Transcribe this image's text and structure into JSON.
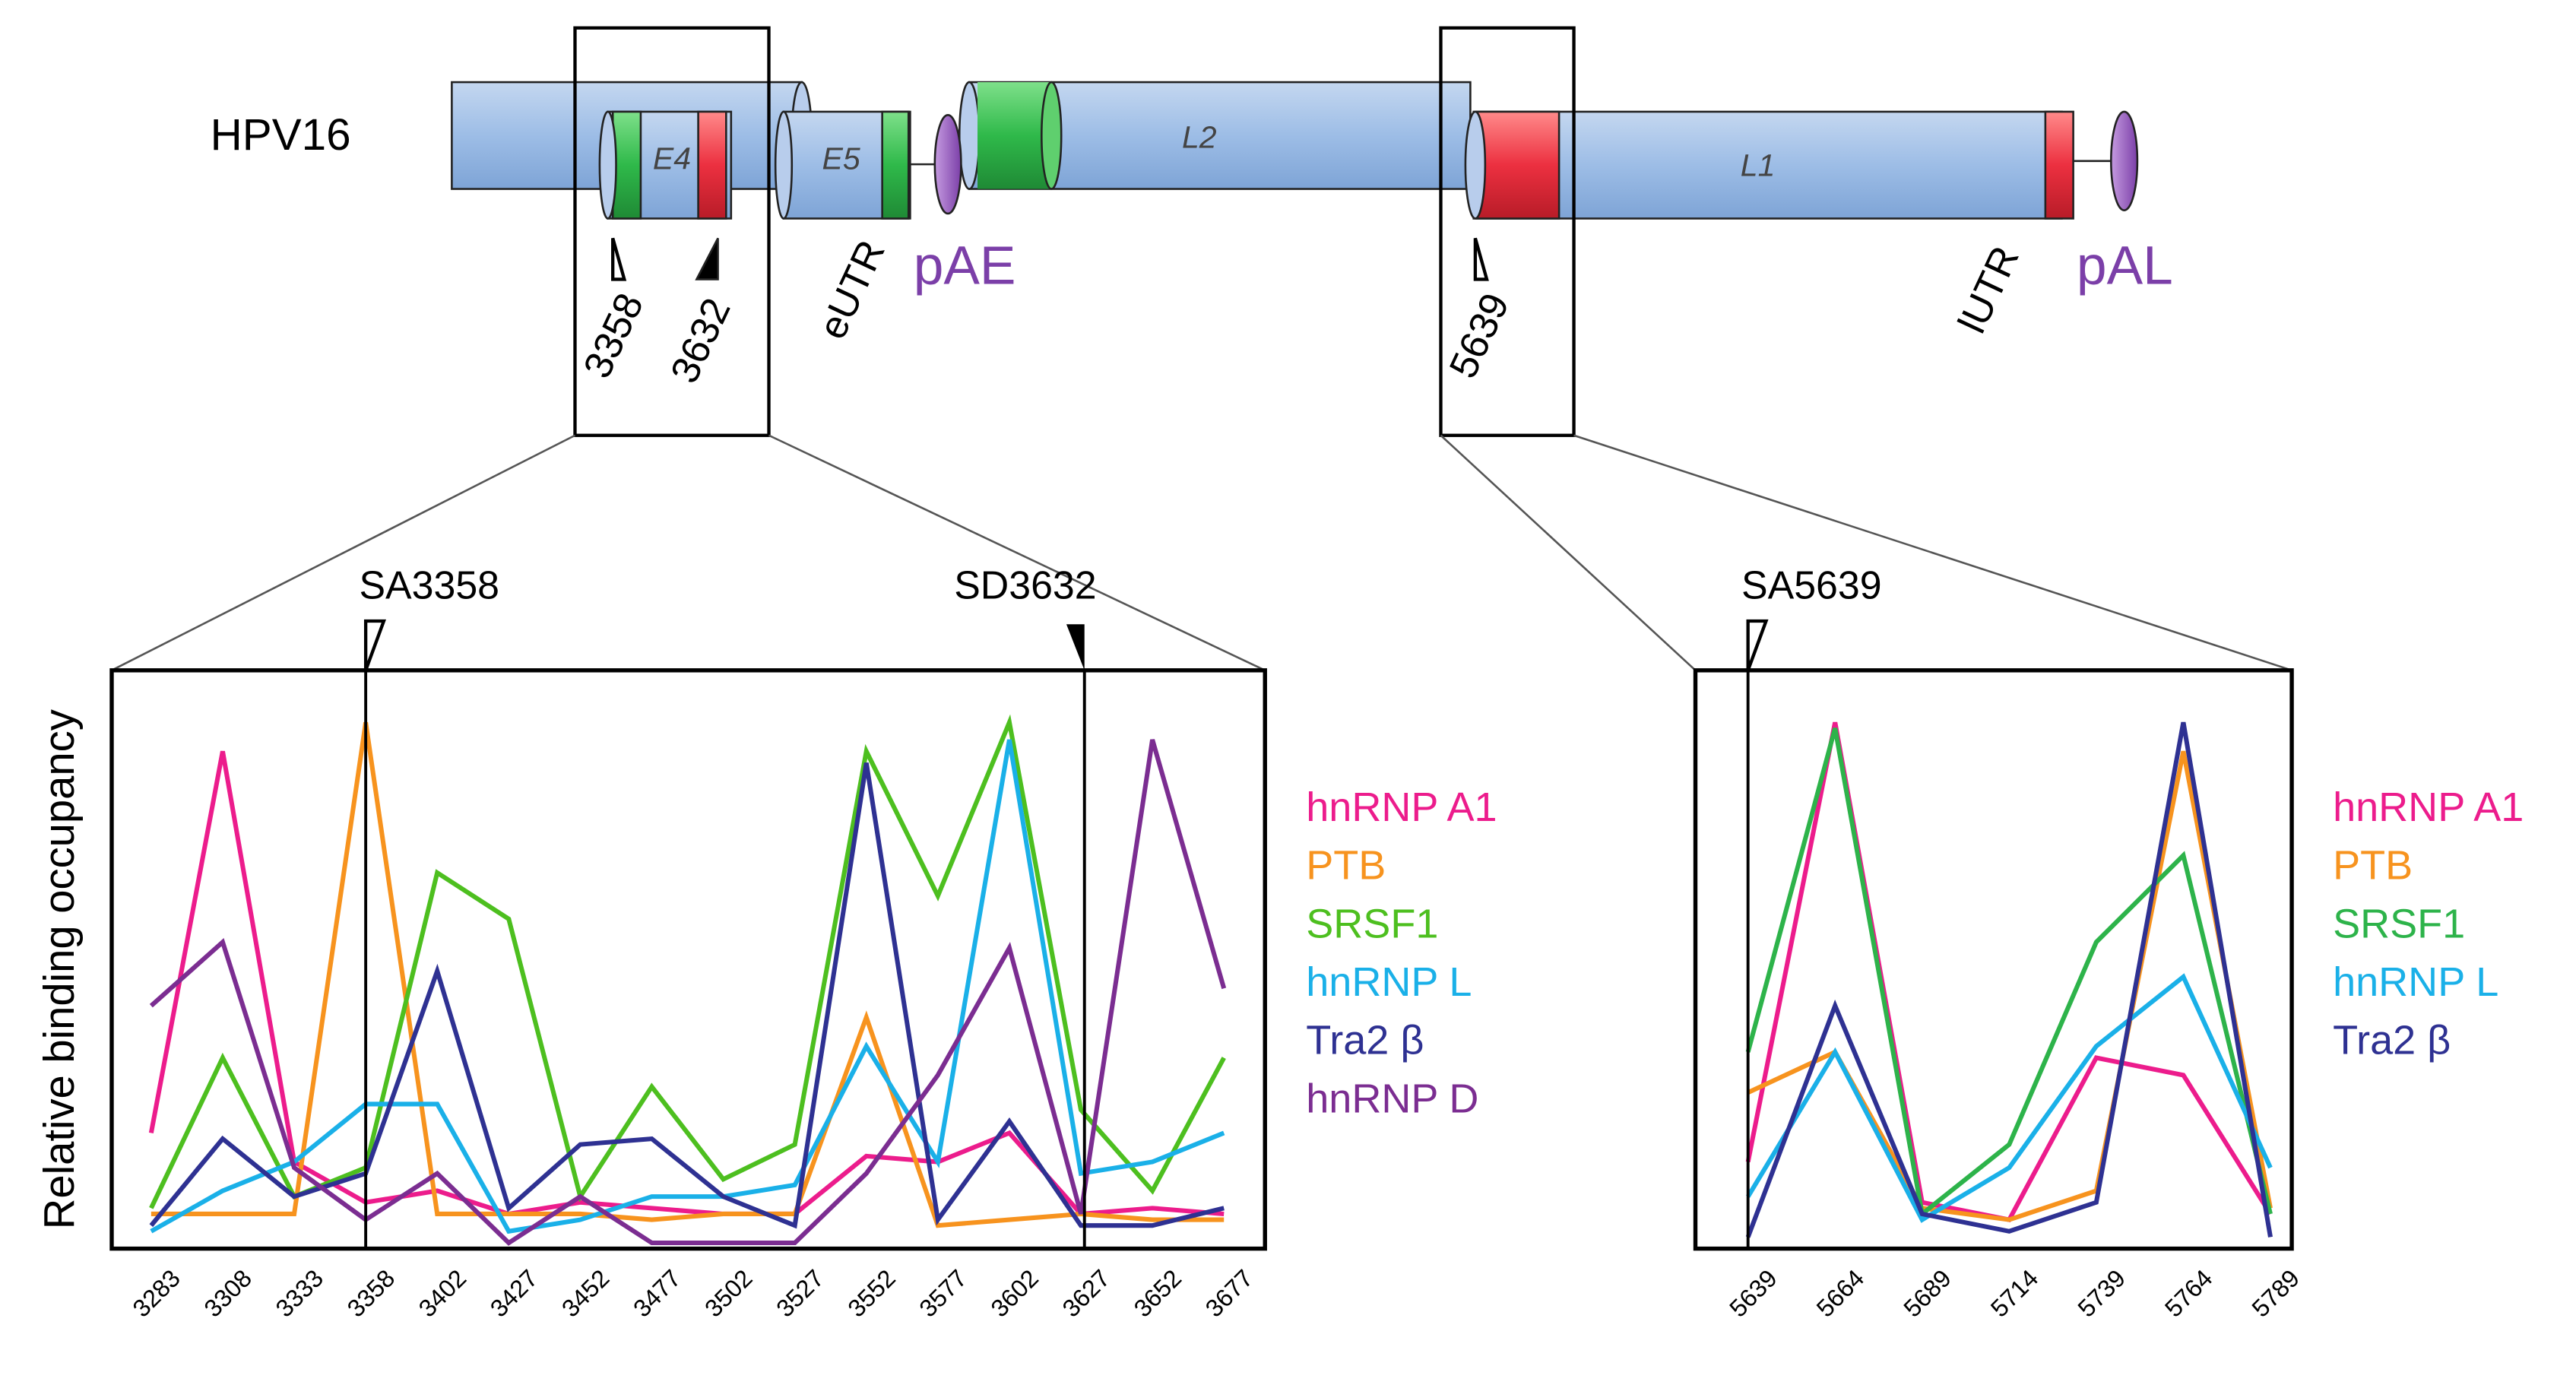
{
  "diagram": {
    "genome": "HPV16",
    "exons": [
      "E4",
      "E5",
      "L2",
      "L1"
    ],
    "utrs": [
      "eUTR",
      "lUTR"
    ],
    "polyA": [
      "pAE",
      "pAL"
    ],
    "sites": [
      "3358",
      "3632",
      "5639"
    ]
  },
  "chart_data": [
    {
      "type": "line",
      "ylabel": "Relative binding occupancy",
      "ylim": [
        0,
        100
      ],
      "grid": false,
      "legend": "right",
      "annotations": [
        "SA3358",
        "SD3632"
      ],
      "categories": [
        "3283",
        "3308",
        "3333",
        "3358",
        "3402",
        "3427",
        "3452",
        "3477",
        "3502",
        "3527",
        "3552",
        "3577",
        "3602",
        "3627",
        "3652",
        "3677"
      ],
      "series": [
        {
          "name": "hnRNP A1",
          "color": "#ec1c8c",
          "values": [
            20,
            86,
            15,
            8,
            10,
            6,
            8,
            7,
            6,
            6,
            16,
            15,
            20,
            6,
            7,
            6
          ]
        },
        {
          "name": "PTB",
          "color": "#f7931e",
          "values": [
            6,
            6,
            6,
            91,
            6,
            6,
            6,
            5,
            6,
            6,
            40,
            4,
            5,
            6,
            5,
            5
          ]
        },
        {
          "name": "SRSF1",
          "color": "#4dbf1f",
          "values": [
            7,
            33,
            9,
            14,
            65,
            57,
            9,
            28,
            12,
            18,
            86,
            61,
            91,
            24,
            10,
            33
          ]
        },
        {
          "name": "hnRNP L",
          "color": "#1ab0e8",
          "values": [
            3,
            10,
            15,
            25,
            25,
            3,
            5,
            9,
            9,
            11,
            35,
            15,
            88,
            13,
            15,
            20
          ]
        },
        {
          "name": "Tra2 β",
          "color": "#2e3192",
          "values": [
            4,
            19,
            9,
            13,
            48,
            7,
            18,
            19,
            9,
            4,
            84,
            5,
            22,
            4,
            4,
            7
          ]
        },
        {
          "name": "hnRNP D",
          "color": "#7b2d91",
          "values": [
            42,
            53,
            14,
            5,
            13,
            1,
            9,
            1,
            1,
            1,
            13,
            30,
            52,
            6,
            88,
            45
          ]
        }
      ]
    },
    {
      "type": "line",
      "ylim": [
        0,
        100
      ],
      "grid": false,
      "legend": "right",
      "annotations": [
        "SA5639"
      ],
      "categories": [
        "5639",
        "5664",
        "5689",
        "5714",
        "5739",
        "5764",
        "5789"
      ],
      "series": [
        {
          "name": "hnRNP A1",
          "color": "#ec1c8c",
          "values": [
            15,
            91,
            8,
            5,
            33,
            30,
            6
          ]
        },
        {
          "name": "PTB",
          "color": "#f7931e",
          "values": [
            27,
            34,
            7,
            5,
            10,
            86,
            7
          ]
        },
        {
          "name": "SRSF1",
          "color": "#2db34a",
          "values": [
            34,
            90,
            6,
            18,
            53,
            68,
            6
          ]
        },
        {
          "name": "hnRNP L",
          "color": "#1ab0e8",
          "values": [
            9,
            34,
            5,
            14,
            35,
            47,
            14
          ]
        },
        {
          "name": "Tra2 β",
          "color": "#2e3192",
          "values": [
            2,
            42,
            6,
            3,
            8,
            91,
            2
          ]
        }
      ]
    }
  ]
}
